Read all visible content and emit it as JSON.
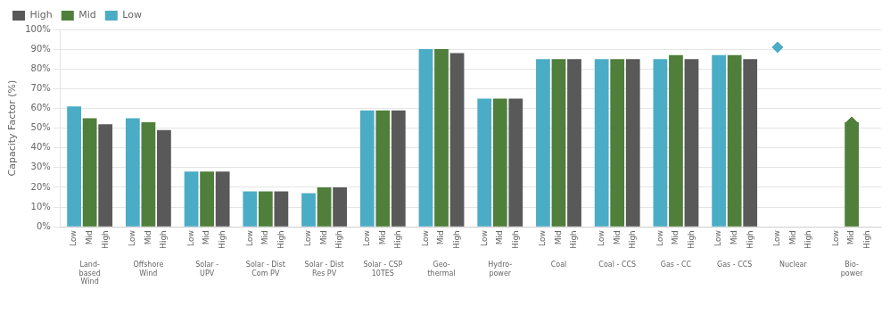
{
  "chart_data": {
    "type": "bar",
    "ylabel": "Capacity Factor (%)",
    "categories": [
      "Land-\nbased\nWind",
      "Offshore\nWind",
      "Solar -\nUPV",
      "Solar - Dist\nCom PV",
      "Solar - Dist\nRes PV",
      "Solar - CSP\n10TES",
      "Geo-\nthermal",
      "Hydro-\npower",
      "Coal",
      "Coal - CCS",
      "Gas - CC",
      "Gas - CCS",
      "Nuclear",
      "Bio-\npower"
    ],
    "series": [
      {
        "name": "Low",
        "color": "#4bacc6",
        "values": [
          0.61,
          0.55,
          0.28,
          0.18,
          0.17,
          0.59,
          0.9,
          0.65,
          0.85,
          0.85,
          0.85,
          0.87,
          null,
          null
        ],
        "marker": "diamond",
        "marker_values": [
          null,
          null,
          null,
          null,
          null,
          null,
          null,
          null,
          null,
          null,
          null,
          null,
          0.91,
          null
        ]
      },
      {
        "name": "Mid",
        "color": "#4f7f3a",
        "values": [
          0.55,
          0.53,
          0.28,
          0.18,
          0.2,
          0.59,
          0.9,
          0.65,
          0.85,
          0.85,
          0.87,
          0.87,
          null,
          0.53
        ],
        "marker": "diamond",
        "marker_values": [
          null,
          null,
          null,
          null,
          null,
          null,
          null,
          null,
          null,
          null,
          null,
          null,
          null,
          0.53
        ]
      },
      {
        "name": "High",
        "color": "#595959",
        "values": [
          0.52,
          0.49,
          0.28,
          0.18,
          0.2,
          0.59,
          0.88,
          0.65,
          0.85,
          0.85,
          0.85,
          0.85,
          null,
          null
        ]
      }
    ],
    "ylim": [
      0,
      1.0
    ],
    "yticks": [
      {
        "value": 0,
        "label": "0%"
      },
      {
        "value": 0.1,
        "label": "10%"
      },
      {
        "value": 0.2,
        "label": "20%"
      },
      {
        "value": 0.3,
        "label": "30%"
      },
      {
        "value": 0.4,
        "label": "40%"
      },
      {
        "value": 0.5,
        "label": "50%"
      },
      {
        "value": 0.6,
        "label": "60%"
      },
      {
        "value": 0.7,
        "label": "70%"
      },
      {
        "value": 0.8,
        "label": "80%"
      },
      {
        "value": 0.9,
        "label": "90%"
      },
      {
        "value": 1.0,
        "label": "100%"
      }
    ],
    "grid": true,
    "legend": "upper left"
  }
}
